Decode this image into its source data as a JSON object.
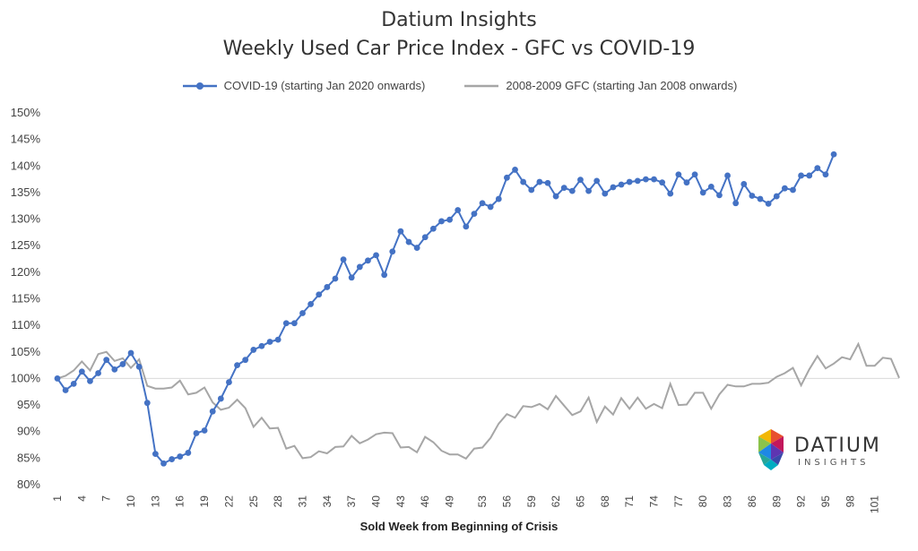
{
  "chart_data": {
    "type": "line",
    "title": "Datium Insights",
    "subtitle": "Weekly Used Car Price Index - GFC vs COVID-19",
    "xlabel": "Sold Week from Beginning of Crisis",
    "ylabel": "",
    "ylim": [
      80,
      150
    ],
    "yticks": [
      "80%",
      "85%",
      "90%",
      "95%",
      "100%",
      "105%",
      "110%",
      "115%",
      "120%",
      "125%",
      "130%",
      "135%",
      "140%",
      "145%",
      "150%"
    ],
    "xticks": [
      "1",
      "4",
      "7",
      "10",
      "13",
      "16",
      "19",
      "22",
      "25",
      "28",
      "31",
      "34",
      "37",
      "40",
      "43",
      "46",
      "49",
      "53",
      "56",
      "59",
      "62",
      "65",
      "68",
      "71",
      "74",
      "77",
      "80",
      "83",
      "86",
      "89",
      "92",
      "95",
      "98",
      "101"
    ],
    "legend_position": "top",
    "series": [
      {
        "name": "COVID-19 (starting Jan 2020 onwards)",
        "color": "#4472C4",
        "x_start": 1,
        "values": [
          100,
          97.8,
          99,
          101.3,
          99.5,
          101,
          103.5,
          101.7,
          102.7,
          104.8,
          102.2,
          95.4,
          85.8,
          84,
          84.8,
          85.3,
          86,
          89.7,
          90.2,
          93.8,
          96.2,
          99.3,
          102.5,
          103.5,
          105.4,
          106.1,
          106.9,
          107.3,
          110.4,
          110.4,
          112.3,
          114,
          115.8,
          117.2,
          118.8,
          122.4,
          119,
          121,
          122.2,
          123.2,
          119.5,
          123.9,
          127.7,
          125.7,
          124.6,
          126.6,
          128.2,
          129.6,
          129.9,
          131.7,
          128.6,
          131,
          133,
          132.3,
          133.8,
          137.8,
          139.3,
          137,
          135.5,
          137,
          136.8,
          134.3,
          135.9,
          135.3,
          137.4,
          135.3,
          137.2,
          134.8,
          136,
          136.5,
          137,
          137.2,
          137.5,
          137.5,
          136.9,
          134.8,
          138.4,
          136.9,
          138.4,
          135,
          136.1,
          134.5,
          138.2,
          133,
          136.6,
          134.4,
          133.8,
          132.9,
          134.3,
          135.8,
          135.5,
          138.2,
          138.2,
          139.6,
          138.4,
          142.2
        ]
      },
      {
        "name": "2008-2009 GFC (starting Jan 2008 onwards)",
        "color": "#A6A6A6",
        "x_start": 1,
        "values": [
          100,
          100.5,
          101.5,
          103.2,
          101.5,
          104.6,
          105,
          103.3,
          103.8,
          102,
          103.6,
          98.6,
          98.1,
          98.1,
          98.3,
          99.6,
          97,
          97.3,
          98.3,
          95.5,
          94.1,
          94.5,
          96,
          94.4,
          90.9,
          92.6,
          90.6,
          90.7,
          86.8,
          87.3,
          85,
          85.2,
          86.3,
          85.9,
          87.1,
          87.2,
          89.2,
          87.8,
          88.5,
          89.5,
          89.8,
          89.7,
          87,
          87.1,
          86.1,
          89,
          88,
          86.4,
          85.7,
          85.7,
          84.9,
          86.8,
          87,
          88.8,
          91.5,
          93.3,
          92.6,
          94.8,
          94.6,
          95.2,
          94.2,
          96.7,
          94.9,
          93.1,
          93.8,
          96.4,
          91.8,
          94.7,
          93.2,
          96.3,
          94.3,
          96.4,
          94.3,
          95.2,
          94.4,
          99,
          95,
          95.1,
          97.3,
          97.3,
          94.3,
          97,
          98.8,
          98.5,
          98.5,
          99,
          99,
          99.2,
          100.3,
          101,
          102,
          98.7,
          101.7,
          104.2,
          101.9,
          102.8,
          104,
          103.6,
          106.5,
          102.4,
          102.4,
          103.9,
          103.7,
          100.1
        ]
      }
    ],
    "reference_line": 100
  },
  "logo": {
    "wordmark": "DATIUM",
    "tagline": "INSIGHTS"
  }
}
